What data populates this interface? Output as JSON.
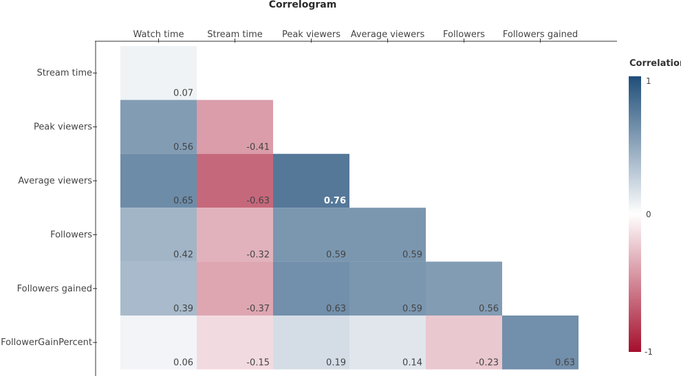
{
  "chart_data": {
    "type": "heatmap",
    "title": "Correlogram",
    "x_labels": [
      "Watch time",
      "Stream time",
      "Peak viewers",
      "Average viewers",
      "Followers",
      "Followers gained"
    ],
    "y_labels": [
      "Stream time",
      "Peak viewers",
      "Average viewers",
      "Followers",
      "Followers gained",
      "FollowerGainPercent"
    ],
    "values": [
      [
        0.07,
        null,
        null,
        null,
        null,
        null
      ],
      [
        0.56,
        -0.41,
        null,
        null,
        null,
        null
      ],
      [
        0.65,
        -0.63,
        0.76,
        null,
        null,
        null
      ],
      [
        0.42,
        -0.32,
        0.59,
        0.59,
        null,
        null
      ],
      [
        0.39,
        -0.37,
        0.63,
        0.59,
        0.56,
        null
      ],
      [
        0.06,
        -0.15,
        0.19,
        0.14,
        -0.23,
        0.63
      ]
    ],
    "value_labels": [
      [
        "0.07",
        "",
        "",
        "",
        "",
        ""
      ],
      [
        "0.56",
        "-0.41",
        "",
        "",
        "",
        ""
      ],
      [
        "0.65",
        "-0.63",
        "0.76",
        "",
        "",
        ""
      ],
      [
        "0.42",
        "-0.32",
        "0.59",
        "0.59",
        "",
        ""
      ],
      [
        "0.39",
        "-0.37",
        "0.63",
        "0.59",
        "0.56",
        ""
      ],
      [
        "0.06",
        "-0.15",
        "0.19",
        "0.14",
        "-0.23",
        "0.63"
      ]
    ],
    "highlight_value": "0.76",
    "colorbar": {
      "title": "Correlation",
      "min": -1,
      "max": 1,
      "ticks": [
        "1",
        "0",
        "-1"
      ],
      "colors": {
        "positive": "#1f4e79",
        "neutral": "#ffffff",
        "negative": "#a50f2d"
      }
    }
  }
}
